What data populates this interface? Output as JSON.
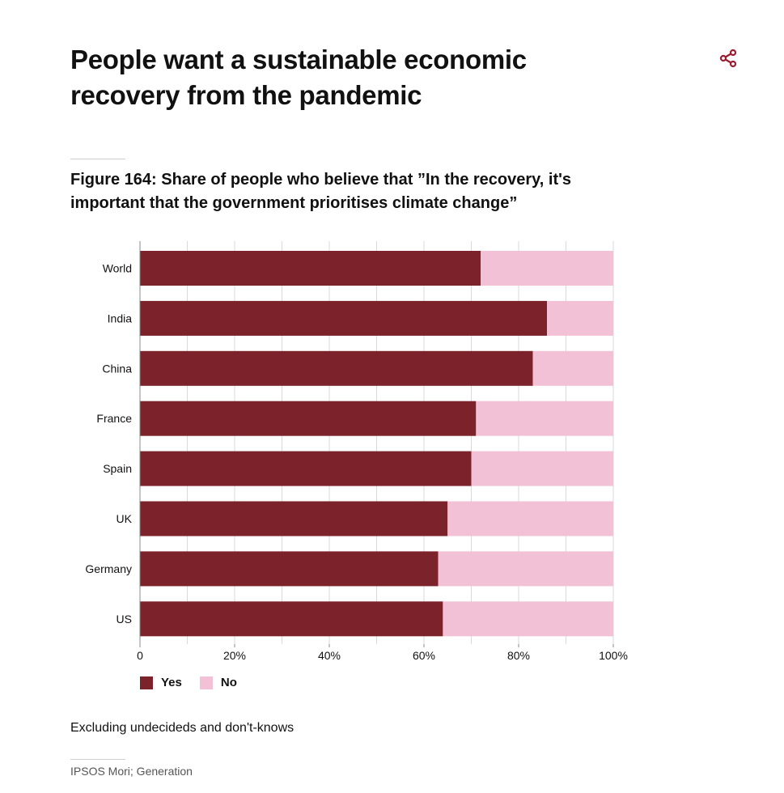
{
  "header": {
    "title": "People want a sustainable economic recovery from the pandemic",
    "share_icon": "share-icon"
  },
  "figure": {
    "title": "Figure 164: Share of people who believe that ”In the recovery, it's important that the government prioritises climate change”"
  },
  "chart_data": {
    "type": "bar",
    "orientation": "horizontal",
    "stacked": true,
    "categories": [
      "World",
      "India",
      "China",
      "France",
      "Spain",
      "UK",
      "Germany",
      "US"
    ],
    "series": [
      {
        "name": "Yes",
        "color": "#7c222b",
        "values": [
          72,
          86,
          83,
          71,
          70,
          65,
          63,
          64
        ]
      },
      {
        "name": "No",
        "color": "#f3c1d6",
        "values": [
          28,
          14,
          17,
          29,
          30,
          35,
          37,
          36
        ]
      }
    ],
    "xlim": [
      0,
      100
    ],
    "xticks": [
      "0",
      "20%",
      "40%",
      "60%",
      "80%",
      "100%"
    ],
    "xtick_values": [
      0,
      20,
      40,
      60,
      80,
      100
    ],
    "grid": true,
    "legend_position": "bottom-left"
  },
  "legend": {
    "items": [
      {
        "label": "Yes",
        "color": "#7c222b"
      },
      {
        "label": "No",
        "color": "#f3c1d6"
      }
    ]
  },
  "footer": {
    "note": "Excluding undecideds and don't-knows",
    "source": "IPSOS Mori; Generation"
  },
  "colors": {
    "accent": "#9b1b30",
    "grid": "#d9d9d9"
  }
}
